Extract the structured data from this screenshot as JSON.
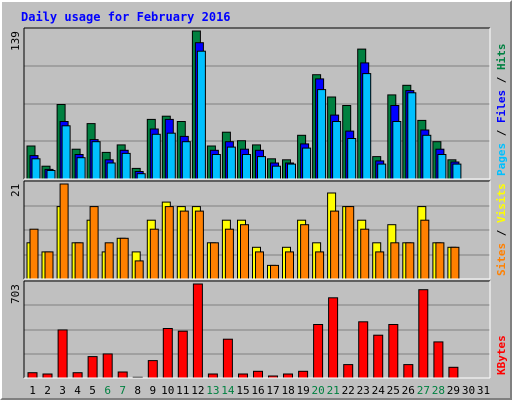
{
  "chart_data": {
    "type": "bar",
    "title": "Daily usage for February 2016",
    "days": [
      "1",
      "2",
      "3",
      "4",
      "5",
      "6",
      "7",
      "8",
      "9",
      "10",
      "11",
      "12",
      "13",
      "14",
      "15",
      "16",
      "17",
      "18",
      "19",
      "20",
      "21",
      "22",
      "23",
      "24",
      "25",
      "26",
      "27",
      "28",
      "29",
      "30",
      "31"
    ],
    "weekend_days": [
      6,
      7,
      13,
      14,
      20,
      21,
      27,
      28
    ],
    "colors": {
      "hits": "#008040",
      "files": "#0000ff",
      "pages": "#00c0ff",
      "visits": "#ffff00",
      "sites": "#ff8000",
      "kbytes": "#ff0000",
      "weekday_label": "#000000",
      "weekend_label": "#008040"
    },
    "panels": [
      {
        "id": "top",
        "max_label": "139",
        "ymax": 139,
        "right_label": [
          {
            "text": "Pages",
            "color": "#00c0ff"
          },
          {
            "text": " / ",
            "color": "#000000"
          },
          {
            "text": "Files",
            "color": "#0000ff"
          },
          {
            "text": " / ",
            "color": "#000000"
          },
          {
            "text": "Hits",
            "color": "#008040"
          }
        ],
        "series": [
          {
            "key": "hits",
            "values": [
              31,
              12,
              70,
              28,
              52,
              25,
              32,
              10,
              56,
              59,
              54,
              139,
              31,
              44,
              36,
              32,
              19,
              18,
              41,
              98,
              77,
              69,
              122,
              21,
              79,
              88,
              55,
              35,
              18,
              0,
              0
            ]
          },
          {
            "key": "files",
            "values": [
              22,
              9,
              54,
              23,
              37,
              18,
              27,
              7,
              47,
              56,
              40,
              128,
              27,
              35,
              28,
              27,
              15,
              15,
              33,
              94,
              60,
              45,
              109,
              17,
              69,
              83,
              46,
              28,
              16,
              0,
              0
            ]
          },
          {
            "key": "pages",
            "values": [
              19,
              8,
              50,
              20,
              35,
              15,
              24,
              5,
              42,
              43,
              35,
              120,
              23,
              30,
              23,
              21,
              12,
              14,
              29,
              84,
              54,
              38,
              99,
              14,
              54,
              81,
              41,
              23,
              14,
              0,
              0
            ]
          }
        ]
      },
      {
        "id": "mid",
        "max_label": "21",
        "ymax": 21,
        "right_label": [
          {
            "text": "Sites",
            "color": "#ff8000"
          },
          {
            "text": " / ",
            "color": "#000000"
          },
          {
            "text": "Visits",
            "color": "#ffff00"
          }
        ],
        "series": [
          {
            "key": "visits",
            "values": [
              8,
              6,
              16,
              8,
              13,
              6,
              9,
              6,
              13,
              17,
              16,
              16,
              8,
              13,
              13,
              7,
              3,
              7,
              13,
              8,
              19,
              16,
              13,
              8,
              12,
              8,
              16,
              8,
              7,
              0,
              0
            ]
          },
          {
            "key": "sites",
            "values": [
              11,
              6,
              21,
              8,
              16,
              8,
              9,
              4,
              11,
              16,
              15,
              15,
              8,
              11,
              12,
              6,
              3,
              6,
              12,
              6,
              15,
              16,
              11,
              6,
              8,
              8,
              13,
              8,
              7,
              0,
              0
            ]
          }
        ]
      },
      {
        "id": "bottom",
        "max_label": "703",
        "ymax": 703,
        "right_label": [
          {
            "text": "KBytes",
            "color": "#ff0000"
          }
        ],
        "series": [
          {
            "key": "kbytes",
            "values": [
              40,
              30,
              360,
              40,
              160,
              180,
              45,
              5,
              130,
              370,
              350,
              703,
              30,
              290,
              30,
              50,
              15,
              30,
              50,
              400,
              600,
              100,
              420,
              320,
              400,
              100,
              660,
              270,
              80,
              0,
              0
            ]
          }
        ]
      }
    ]
  }
}
